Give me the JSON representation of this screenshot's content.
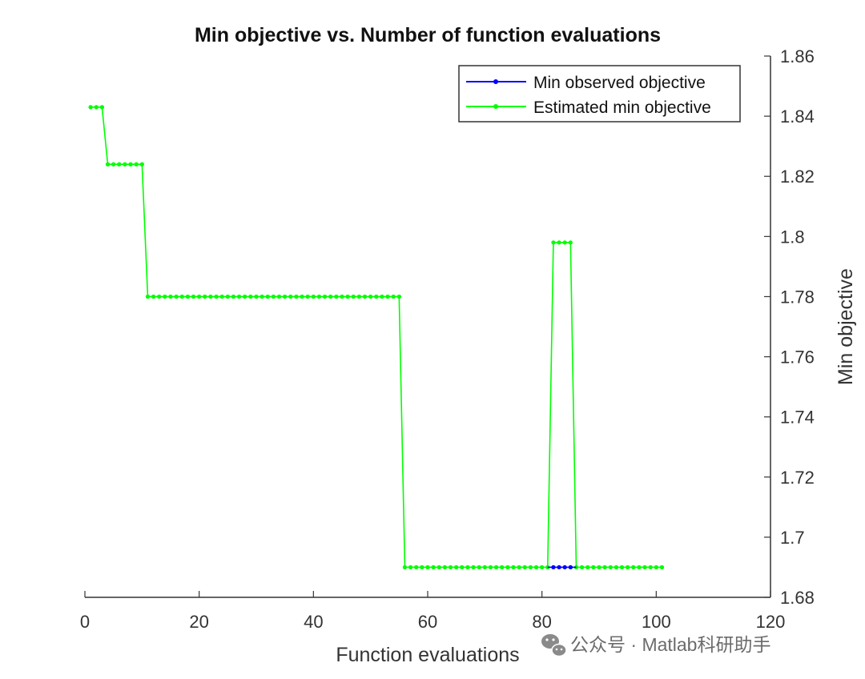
{
  "chart_data": {
    "type": "line",
    "title": "Min objective vs. Number of function evaluations",
    "xlabel": "Function evaluations",
    "ylabel": "Min objective",
    "xlim": [
      0,
      120
    ],
    "ylim": [
      1.68,
      1.86
    ],
    "xticks": [
      "0",
      "20",
      "40",
      "60",
      "80",
      "100",
      "120"
    ],
    "yticks": [
      "1.68",
      "1.7",
      "1.72",
      "1.74",
      "1.76",
      "1.78",
      "1.8",
      "1.82",
      "1.84",
      "1.86"
    ],
    "y_axis_side": "right",
    "grid": false,
    "legend_position": "top-right",
    "series": [
      {
        "name": "Min observed objective",
        "color": "#0000ff",
        "x": [
          1,
          2,
          3,
          4,
          5,
          6,
          7,
          8,
          9,
          10,
          11,
          12,
          13,
          14,
          15,
          16,
          17,
          18,
          19,
          20,
          21,
          22,
          23,
          24,
          25,
          26,
          27,
          28,
          29,
          30,
          31,
          32,
          33,
          34,
          35,
          36,
          37,
          38,
          39,
          40,
          41,
          42,
          43,
          44,
          45,
          46,
          47,
          48,
          49,
          50,
          51,
          52,
          53,
          54,
          55,
          56,
          57,
          58,
          59,
          60,
          61,
          62,
          63,
          64,
          65,
          66,
          67,
          68,
          69,
          70,
          71,
          72,
          73,
          74,
          75,
          76,
          77,
          78,
          79,
          80,
          81,
          82,
          83,
          84,
          85,
          86,
          87,
          88,
          89,
          90,
          91,
          92,
          93,
          94,
          95,
          96,
          97,
          98,
          99,
          100,
          101
        ],
        "y": [
          1.843,
          1.843,
          1.843,
          1.824,
          1.824,
          1.824,
          1.824,
          1.824,
          1.824,
          1.824,
          1.78,
          1.78,
          1.78,
          1.78,
          1.78,
          1.78,
          1.78,
          1.78,
          1.78,
          1.78,
          1.78,
          1.78,
          1.78,
          1.78,
          1.78,
          1.78,
          1.78,
          1.78,
          1.78,
          1.78,
          1.78,
          1.78,
          1.78,
          1.78,
          1.78,
          1.78,
          1.78,
          1.78,
          1.78,
          1.78,
          1.78,
          1.78,
          1.78,
          1.78,
          1.78,
          1.78,
          1.78,
          1.78,
          1.78,
          1.78,
          1.78,
          1.78,
          1.78,
          1.78,
          1.78,
          1.69,
          1.69,
          1.69,
          1.69,
          1.69,
          1.69,
          1.69,
          1.69,
          1.69,
          1.69,
          1.69,
          1.69,
          1.69,
          1.69,
          1.69,
          1.69,
          1.69,
          1.69,
          1.69,
          1.69,
          1.69,
          1.69,
          1.69,
          1.69,
          1.69,
          1.69,
          1.69,
          1.69,
          1.69,
          1.69,
          1.69,
          1.69,
          1.69,
          1.69,
          1.69,
          1.69,
          1.69,
          1.69,
          1.69,
          1.69,
          1.69,
          1.69,
          1.69,
          1.69,
          1.69,
          1.69
        ]
      },
      {
        "name": "Estimated min objective",
        "color": "#00ff00",
        "x": [
          1,
          2,
          3,
          4,
          5,
          6,
          7,
          8,
          9,
          10,
          11,
          12,
          13,
          14,
          15,
          16,
          17,
          18,
          19,
          20,
          21,
          22,
          23,
          24,
          25,
          26,
          27,
          28,
          29,
          30,
          31,
          32,
          33,
          34,
          35,
          36,
          37,
          38,
          39,
          40,
          41,
          42,
          43,
          44,
          45,
          46,
          47,
          48,
          49,
          50,
          51,
          52,
          53,
          54,
          55,
          56,
          57,
          58,
          59,
          60,
          61,
          62,
          63,
          64,
          65,
          66,
          67,
          68,
          69,
          70,
          71,
          72,
          73,
          74,
          75,
          76,
          77,
          78,
          79,
          80,
          81,
          82,
          83,
          84,
          85,
          86,
          87,
          88,
          89,
          90,
          91,
          92,
          93,
          94,
          95,
          96,
          97,
          98,
          99,
          100,
          101
        ],
        "y": [
          1.843,
          1.843,
          1.843,
          1.824,
          1.824,
          1.824,
          1.824,
          1.824,
          1.824,
          1.824,
          1.78,
          1.78,
          1.78,
          1.78,
          1.78,
          1.78,
          1.78,
          1.78,
          1.78,
          1.78,
          1.78,
          1.78,
          1.78,
          1.78,
          1.78,
          1.78,
          1.78,
          1.78,
          1.78,
          1.78,
          1.78,
          1.78,
          1.78,
          1.78,
          1.78,
          1.78,
          1.78,
          1.78,
          1.78,
          1.78,
          1.78,
          1.78,
          1.78,
          1.78,
          1.78,
          1.78,
          1.78,
          1.78,
          1.78,
          1.78,
          1.78,
          1.78,
          1.78,
          1.78,
          1.78,
          1.69,
          1.69,
          1.69,
          1.69,
          1.69,
          1.69,
          1.69,
          1.69,
          1.69,
          1.69,
          1.69,
          1.69,
          1.69,
          1.69,
          1.69,
          1.69,
          1.69,
          1.69,
          1.69,
          1.69,
          1.69,
          1.69,
          1.69,
          1.69,
          1.69,
          1.69,
          1.798,
          1.798,
          1.798,
          1.798,
          1.69,
          1.69,
          1.69,
          1.69,
          1.69,
          1.69,
          1.69,
          1.69,
          1.69,
          1.69,
          1.69,
          1.69,
          1.69,
          1.69,
          1.69,
          1.69
        ]
      }
    ]
  },
  "watermark": {
    "text": "公众号 · Matlab科研助手",
    "icon": "wechat-icon"
  }
}
